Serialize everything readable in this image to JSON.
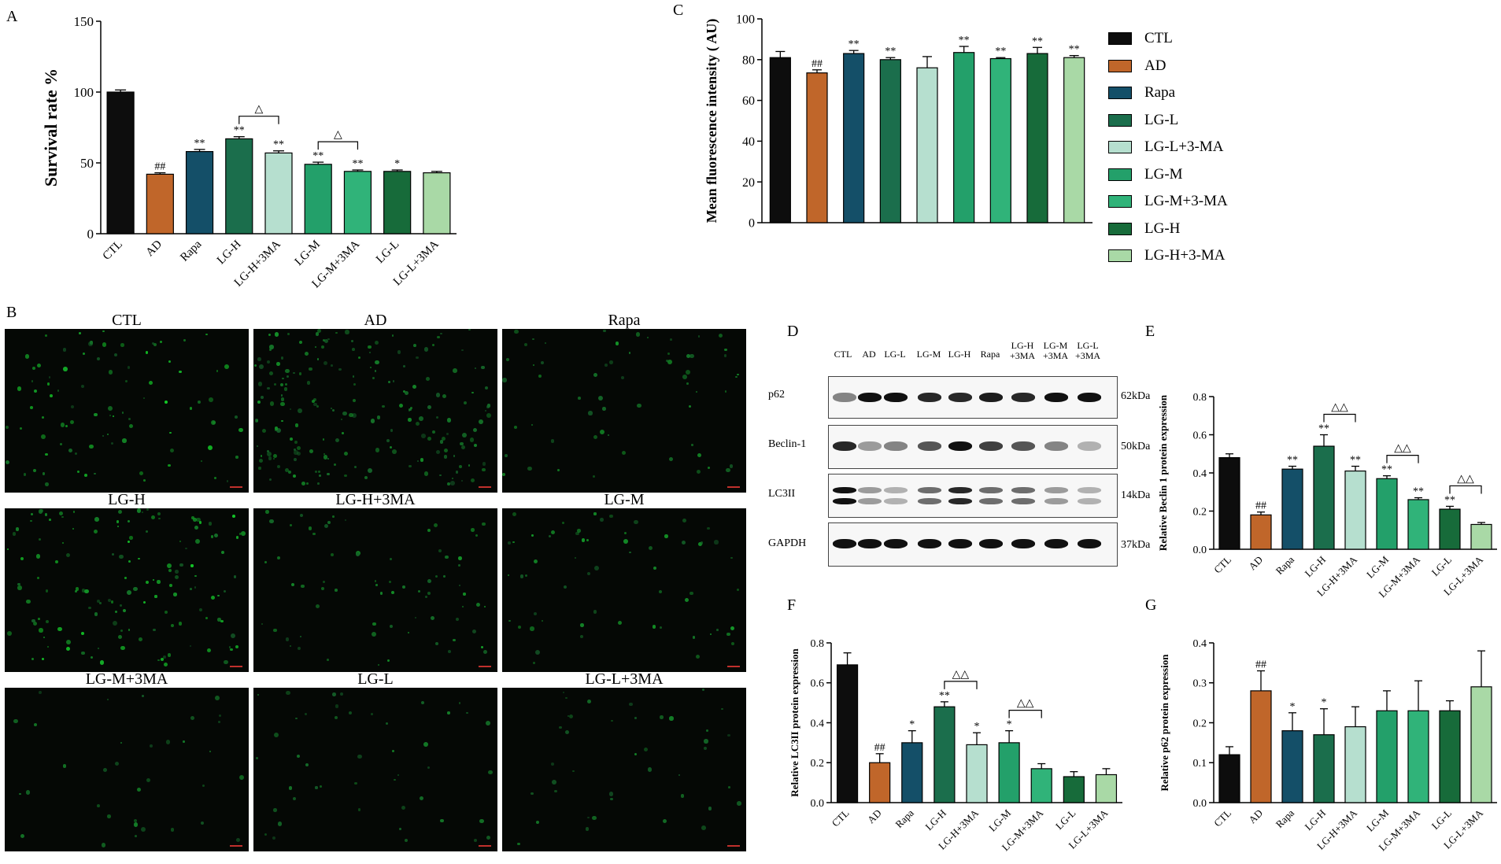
{
  "panels": {
    "a": "A",
    "b": "B",
    "c": "C",
    "d": "D",
    "e": "E",
    "f": "F",
    "g": "G"
  },
  "colors": {
    "CTL": "#0d0d0d",
    "AD": "#c0662a",
    "Rapa": "#144f68",
    "LG-H": "#1b6e4c",
    "LG-H+3MA": "#b6dfcf",
    "LG-M": "#23a06a",
    "LG-M+3MA": "#30b379",
    "LG-L": "#176b3a",
    "LG-L+3MA": "#a9d9a6"
  },
  "legend": {
    "items": [
      {
        "label": "CTL",
        "color": "#0d0d0d"
      },
      {
        "label": "AD",
        "color": "#c0662a"
      },
      {
        "label": "Rapa",
        "color": "#144f68"
      },
      {
        "label": "LG-L",
        "color": "#1b6e4c"
      },
      {
        "label": "LG-L+3-MA",
        "color": "#b6dfcf"
      },
      {
        "label": "LG-M",
        "color": "#23a06a"
      },
      {
        "label": "LG-M+3-MA",
        "color": "#30b379"
      },
      {
        "label": "LG-H",
        "color": "#176b3a"
      },
      {
        "label": "LG-H+3-MA",
        "color": "#a9d9a6"
      }
    ]
  },
  "micrographs": {
    "titles": [
      "CTL",
      "AD",
      "Rapa",
      "LG-H",
      "LG-H+3MA",
      "LG-M",
      "LG-M+3MA",
      "LG-L",
      "LG-L+3MA"
    ]
  },
  "western_blot": {
    "lanes": [
      "CTL",
      "AD",
      "LG-L",
      "LG-M",
      "LG-H",
      "Rapa",
      "LG-H +3MA",
      "LG-M +3MA",
      "LG-L +3MA"
    ],
    "proteins": [
      {
        "name": "p62",
        "kda": "62kDa"
      },
      {
        "name": "Beclin-1",
        "kda": "50kDa"
      },
      {
        "name": "LC3II",
        "kda": "14kDa"
      },
      {
        "name": "GAPDH",
        "kda": "37kDa"
      }
    ]
  },
  "chart_data": [
    {
      "id": "A",
      "type": "bar",
      "ylabel": "Survival rate %",
      "ylim": [
        0,
        150
      ],
      "yticks": [
        0,
        50,
        100,
        150
      ],
      "categories": [
        "CTL",
        "AD",
        "Rapa",
        "LG-H",
        "LG-H+3MA",
        "LG-M",
        "LG-M+3MA",
        "LG-L",
        "LG-L+3MA"
      ],
      "values": [
        100,
        42,
        58,
        67,
        57,
        49,
        44,
        44,
        43
      ],
      "errors": [
        1.5,
        1,
        1.5,
        1.5,
        1.5,
        1.5,
        1,
        1,
        1
      ],
      "colors": [
        "#0d0d0d",
        "#c0662a",
        "#144f68",
        "#1b6e4c",
        "#b6dfcf",
        "#23a06a",
        "#30b379",
        "#176b3a",
        "#a9d9a6"
      ],
      "annotations": [
        "",
        "##",
        "**",
        "**",
        "**",
        "**",
        "**",
        "*",
        ""
      ],
      "brackets": [
        {
          "from": 3,
          "to": 4,
          "label": "△"
        },
        {
          "from": 5,
          "to": 6,
          "label": "△"
        }
      ],
      "grid": false
    },
    {
      "id": "C",
      "type": "bar",
      "ylabel": "Mean fluorescence intensity ( AU)",
      "ylim": [
        0,
        100
      ],
      "yticks": [
        0,
        20,
        40,
        60,
        80,
        100
      ],
      "categories": [
        "CTL",
        "AD",
        "Rapa",
        "LG-L",
        "LG-L+3-MA",
        "LG-M",
        "LG-M+3-MA",
        "LG-H",
        "LG-H+3-MA"
      ],
      "values": [
        81,
        73.5,
        83,
        80,
        76,
        83.5,
        80.5,
        83,
        81
      ],
      "errors": [
        3,
        1.5,
        1.5,
        1,
        5.5,
        3,
        0.5,
        3,
        1
      ],
      "colors": [
        "#0d0d0d",
        "#c0662a",
        "#144f68",
        "#1b6e4c",
        "#b6dfcf",
        "#23a06a",
        "#30b379",
        "#176b3a",
        "#a9d9a6"
      ],
      "annotations": [
        "",
        "##",
        "**",
        "**",
        "",
        "**",
        "**",
        "**",
        "**"
      ],
      "brackets": [],
      "grid": false
    },
    {
      "id": "E",
      "type": "bar",
      "ylabel": "Relative Beclin 1 protein expression",
      "ylim": [
        0,
        0.8
      ],
      "yticks": [
        0.0,
        0.2,
        0.4,
        0.6,
        0.8
      ],
      "categories": [
        "CTL",
        "AD",
        "Rapa",
        "LG-H",
        "LG-H+3MA",
        "LG-M",
        "LG-M+3MA",
        "LG-L",
        "LG-L+3MA"
      ],
      "values": [
        0.48,
        0.18,
        0.42,
        0.54,
        0.41,
        0.37,
        0.26,
        0.21,
        0.13
      ],
      "errors": [
        0.02,
        0.015,
        0.015,
        0.06,
        0.025,
        0.015,
        0.01,
        0.015,
        0.01
      ],
      "colors": [
        "#0d0d0d",
        "#c0662a",
        "#144f68",
        "#1b6e4c",
        "#b6dfcf",
        "#23a06a",
        "#30b379",
        "#176b3a",
        "#a9d9a6"
      ],
      "annotations": [
        "",
        "##",
        "**",
        "**",
        "**",
        "**",
        "**",
        "**",
        ""
      ],
      "brackets": [
        {
          "from": 3,
          "to": 4,
          "label": "△△"
        },
        {
          "from": 5,
          "to": 6,
          "label": "△△"
        },
        {
          "from": 7,
          "to": 8,
          "label": "△△"
        }
      ],
      "grid": false
    },
    {
      "id": "F",
      "type": "bar",
      "ylabel": "Relative LC3II protein expression",
      "ylim": [
        0,
        0.8
      ],
      "yticks": [
        0.0,
        0.2,
        0.4,
        0.6,
        0.8
      ],
      "categories": [
        "CTL",
        "AD",
        "Rapa",
        "LG-H",
        "LG-H+3MA",
        "LG-M",
        "LG-M+3MA",
        "LG-L",
        "LG-L+3MA"
      ],
      "values": [
        0.69,
        0.2,
        0.3,
        0.48,
        0.29,
        0.3,
        0.17,
        0.13,
        0.14
      ],
      "errors": [
        0.06,
        0.045,
        0.06,
        0.025,
        0.06,
        0.06,
        0.025,
        0.025,
        0.03
      ],
      "colors": [
        "#0d0d0d",
        "#c0662a",
        "#144f68",
        "#1b6e4c",
        "#b6dfcf",
        "#23a06a",
        "#30b379",
        "#176b3a",
        "#a9d9a6"
      ],
      "annotations": [
        "",
        "##",
        "*",
        "**",
        "*",
        "*",
        "",
        "",
        ""
      ],
      "brackets": [
        {
          "from": 3,
          "to": 4,
          "label": "△△"
        },
        {
          "from": 5,
          "to": 6,
          "label": "△△"
        }
      ],
      "grid": false
    },
    {
      "id": "G",
      "type": "bar",
      "ylabel": "Relative p62 protein expression",
      "ylim": [
        0,
        0.4
      ],
      "yticks": [
        0.0,
        0.1,
        0.2,
        0.3,
        0.4
      ],
      "categories": [
        "CTL",
        "AD",
        "Rapa",
        "LG-H",
        "LG-H+3MA",
        "LG-M",
        "LG-M+3MA",
        "LG-L",
        "LG-L+3MA"
      ],
      "values": [
        0.12,
        0.28,
        0.18,
        0.17,
        0.19,
        0.23,
        0.23,
        0.23,
        0.29
      ],
      "errors": [
        0.02,
        0.05,
        0.045,
        0.065,
        0.05,
        0.05,
        0.075,
        0.025,
        0.09
      ],
      "colors": [
        "#0d0d0d",
        "#c0662a",
        "#144f68",
        "#1b6e4c",
        "#b6dfcf",
        "#23a06a",
        "#30b379",
        "#176b3a",
        "#a9d9a6"
      ],
      "annotations": [
        "",
        "##",
        "*",
        "*",
        "",
        "",
        "",
        "",
        ""
      ],
      "brackets": [],
      "grid": false
    }
  ]
}
